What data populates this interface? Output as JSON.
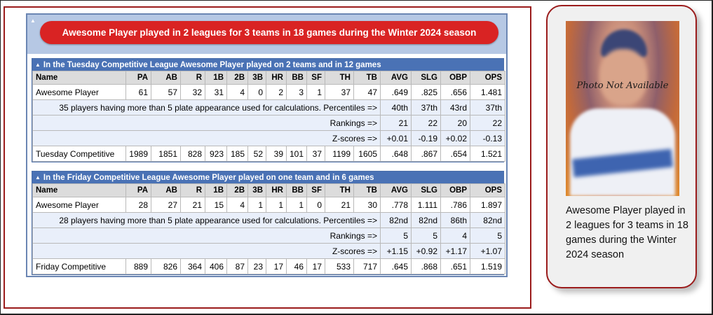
{
  "report": {
    "title": "Awesome Player played in 2 leagues for 3 teams in 18 games during the Winter 2024 season"
  },
  "columns": [
    "Name",
    "PA",
    "AB",
    "R",
    "1B",
    "2B",
    "3B",
    "HR",
    "BB",
    "SF",
    "TH",
    "TB",
    "AVG",
    "SLG",
    "OBP",
    "OPS"
  ],
  "leagues": [
    {
      "header": "In the Tuesday Competitive League Awesome Player played on 2 teams and in 12 games",
      "player_row": [
        "Awesome Player",
        "61",
        "57",
        "32",
        "31",
        "4",
        "0",
        "2",
        "3",
        "1",
        "37",
        "47",
        ".649",
        ".825",
        ".656",
        "1.481"
      ],
      "percentiles_label": "35 players having more than 5 plate appearance used for calculations.  Percentiles =>",
      "percentiles": [
        "40th",
        "37th",
        "43rd",
        "37th"
      ],
      "rankings_label": "Rankings =>",
      "rankings": [
        "21",
        "22",
        "20",
        "22"
      ],
      "zscores_label": "Z-scores =>",
      "zscores": [
        "+0.01",
        "-0.19",
        "+0.02",
        "-0.13"
      ],
      "total_row": [
        "Tuesday Competitive",
        "1989",
        "1851",
        "828",
        "923",
        "185",
        "52",
        "39",
        "101",
        "37",
        "1199",
        "1605",
        ".648",
        ".867",
        ".654",
        "1.521"
      ]
    },
    {
      "header": "In the Friday Competitive League Awesome Player played on one team and in 6 games",
      "player_row": [
        "Awesome Player",
        "28",
        "27",
        "21",
        "15",
        "4",
        "1",
        "1",
        "1",
        "0",
        "21",
        "30",
        ".778",
        "1.111",
        ".786",
        "1.897"
      ],
      "percentiles_label": "28 players having more than 5 plate appearance used for calculations.  Percentiles =>",
      "percentiles": [
        "82nd",
        "82nd",
        "86th",
        "82nd"
      ],
      "rankings_label": "Rankings =>",
      "rankings": [
        "5",
        "5",
        "4",
        "5"
      ],
      "zscores_label": "Z-scores =>",
      "zscores": [
        "+1.15",
        "+0.92",
        "+1.17",
        "+1.07"
      ],
      "total_row": [
        "Friday Competitive",
        "889",
        "826",
        "364",
        "406",
        "87",
        "23",
        "17",
        "46",
        "17",
        "533",
        "717",
        ".645",
        ".868",
        ".651",
        "1.519"
      ]
    }
  ],
  "card": {
    "photo_text": "Photo Not Available",
    "caption": "Awesome Player played in 2 leagues for 3 teams in 18 games during the Winter 2024 season"
  },
  "colors": {
    "title_pill": "#d92323",
    "league_header": "#4a72b5",
    "panel_border": "#9b1c1c",
    "calc_row_bg": "#e9effa"
  },
  "icons": {
    "collapse": "triangle-up-icon"
  }
}
